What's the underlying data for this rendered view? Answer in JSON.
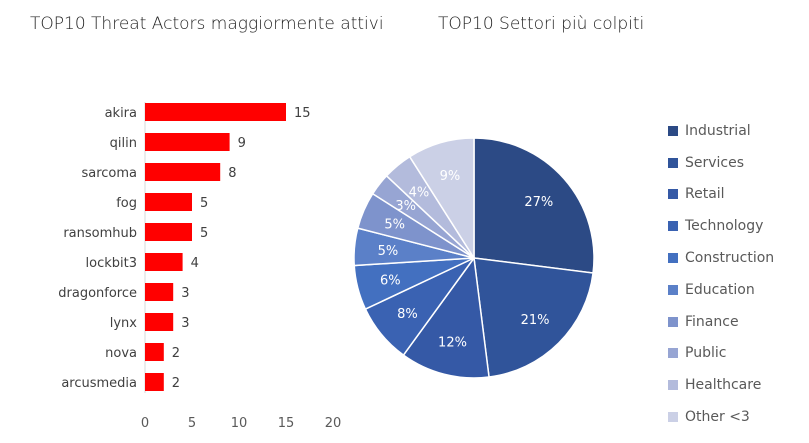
{
  "chart_data": [
    {
      "type": "bar",
      "orientation": "horizontal",
      "title": "TOP10 Threat Actors maggiormente attivi",
      "categories": [
        "akira",
        "qilin",
        "sarcoma",
        "fog",
        "ransomhub",
        "lockbit3",
        "dragonforce",
        "lynx",
        "nova",
        "arcusmedia"
      ],
      "values": [
        15,
        9,
        8,
        5,
        5,
        4,
        3,
        3,
        2,
        2
      ],
      "xlim": [
        0,
        20
      ],
      "xticks": [
        "0",
        "5",
        "10",
        "15",
        "20"
      ],
      "color": "#ff0000",
      "grid": false
    },
    {
      "type": "pie",
      "title": "TOP10 Settori più colpiti",
      "labels": [
        "Industrial",
        "Services",
        "Retail",
        "Technology",
        "Construction",
        "Education",
        "Finance",
        "Public",
        "Healthcare",
        "Other <3"
      ],
      "values": [
        27,
        21,
        12,
        8,
        6,
        5,
        5,
        3,
        4,
        9
      ],
      "data_labels": [
        "27%",
        "21%",
        "12%",
        "8%",
        "6%",
        "5%",
        "5%",
        "3%",
        "4%",
        "9%"
      ],
      "colors": [
        "#2c4a85",
        "#30549a",
        "#3559a6",
        "#3a62b2",
        "#4370c0",
        "#5b80c8",
        "#7e93cc",
        "#97a5d3",
        "#b3bbdc",
        "#cbd0e6"
      ],
      "legend": "right"
    }
  ]
}
